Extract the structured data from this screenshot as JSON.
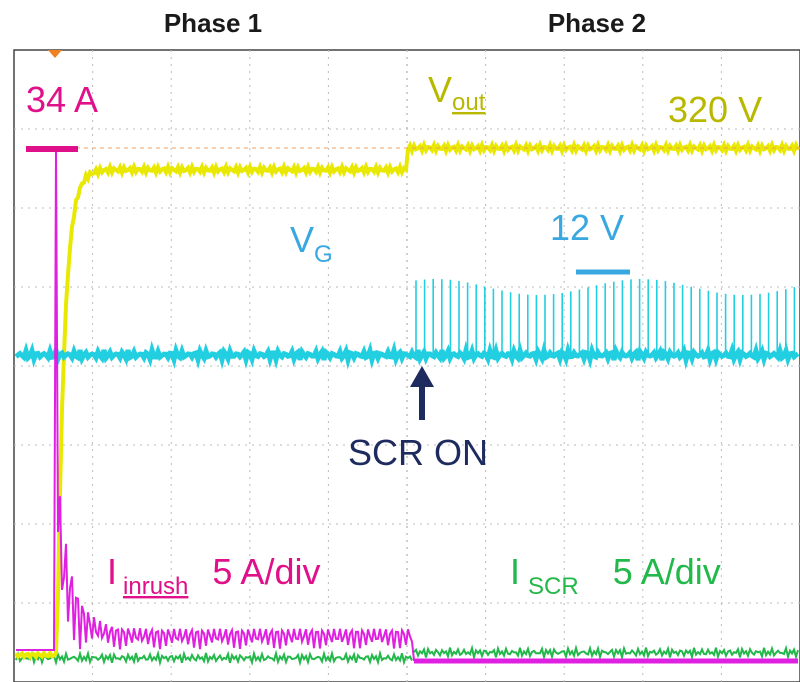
{
  "chart_data": {
    "type": "line",
    "title": "",
    "phases": [
      "Phase 1",
      "Phase 2"
    ],
    "grid": true,
    "divisions": {
      "x": 10,
      "y": 8
    },
    "colors": {
      "vout": "#e8e800",
      "vout_text": "#b8b800",
      "vg": "#22cfe0",
      "vg_text": "#3aa8e0",
      "inrush": "#e020e0",
      "inrush_text": "#e0108a",
      "scr": "#22b84a",
      "arrow": "#1d2b5e",
      "grid": "#bbbbbb"
    },
    "series": [
      {
        "name": "Vout",
        "peak_label": "320 V",
        "peak_value": 320,
        "x": [
          0.5,
          0.7,
          1.0,
          1.5,
          2.0,
          5.0,
          5.1,
          10.0
        ],
        "y": [
          0.0,
          250.0,
          300.0,
          305.0,
          306.0,
          306.0,
          320.0,
          320.0
        ]
      },
      {
        "name": "VG",
        "peak_label": "12 V",
        "peak_value": 12,
        "x": [
          0.0,
          5.0,
          5.05,
          10.0
        ],
        "y": [
          0,
          0,
          12,
          12
        ],
        "pulsed_after_x": 5.0
      },
      {
        "name": "I inrush",
        "scale": "5 A/div",
        "peak_label": "34 A",
        "peak_value": 34,
        "x": [
          0.0,
          0.5,
          0.55,
          0.6,
          0.8,
          1.2,
          2.0,
          5.0,
          5.1,
          10.0
        ],
        "y": [
          0,
          0,
          34,
          12,
          3,
          1,
          1,
          1,
          0,
          0
        ]
      },
      {
        "name": "I SCR",
        "scale": "5 A/div",
        "x": [
          0.0,
          5.0,
          5.05,
          10.0
        ],
        "y": [
          0,
          0,
          1,
          1
        ]
      }
    ],
    "annotations": {
      "vout_label": "V",
      "vout_sub": "out",
      "vg_label": "V",
      "vg_sub": "G",
      "inrush_label": "I",
      "inrush_sub": "inrush",
      "scr_label": "I",
      "scr_sub": "SCR",
      "event": "SCR ON"
    }
  }
}
